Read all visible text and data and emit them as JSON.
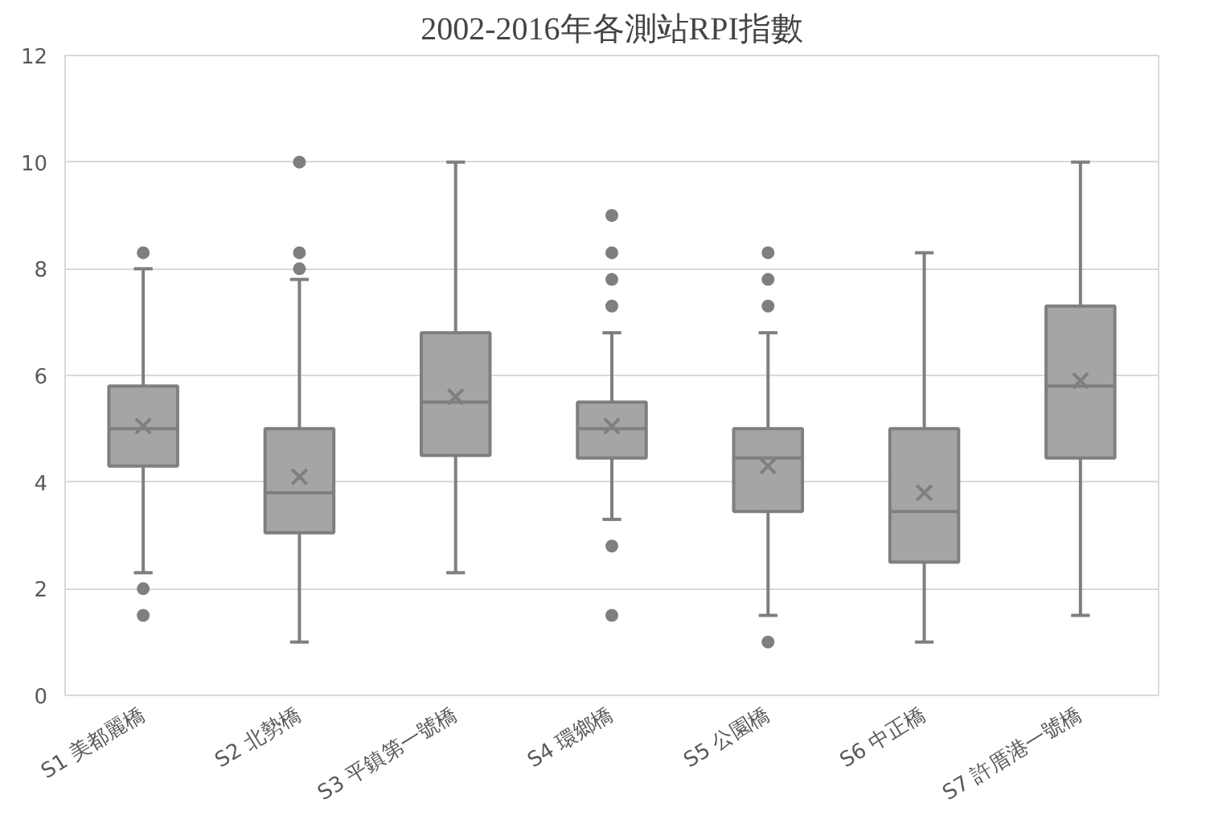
{
  "chart_data": {
    "type": "box",
    "title": "2002-2016年各測站RPI指數",
    "categories": [
      "S1 美都麗橋",
      "S2 北勢橋",
      "S3 平鎮第一號橋",
      "S4 環鄉橋",
      "S5 公園橋",
      "S6 中正橋",
      "S7 許厝港一號橋"
    ],
    "ylim": [
      0,
      12
    ],
    "yticks": [
      0,
      2,
      4,
      6,
      8,
      10,
      12
    ],
    "grid": "y",
    "series": [
      {
        "color": "#a5a5a5",
        "boxes": [
          {
            "low": 2.3,
            "q1": 4.3,
            "median": 5.0,
            "q3": 5.8,
            "high": 8.0,
            "mean": 5.05,
            "outliers": [
              8.3,
              2.0,
              1.5
            ]
          },
          {
            "low": 1.0,
            "q1": 3.05,
            "median": 3.8,
            "q3": 5.0,
            "high": 7.8,
            "mean": 4.1,
            "outliers": [
              10.0,
              8.3,
              8.0
            ]
          },
          {
            "low": 2.3,
            "q1": 4.5,
            "median": 5.5,
            "q3": 6.8,
            "high": 10.0,
            "mean": 5.6
          },
          {
            "low": 3.3,
            "q1": 4.45,
            "median": 5.0,
            "q3": 5.5,
            "high": 6.8,
            "mean": 5.05,
            "outliers": [
              9.0,
              8.3,
              7.8,
              7.3,
              2.8,
              1.5
            ]
          },
          {
            "low": 1.5,
            "q1": 3.45,
            "median": 4.45,
            "q3": 5.0,
            "high": 6.8,
            "mean": 4.3,
            "outliers": [
              8.3,
              7.8,
              7.3,
              1.0
            ]
          },
          {
            "low": 1.0,
            "q1": 2.5,
            "median": 3.45,
            "q3": 5.0,
            "high": 8.3,
            "mean": 3.8
          },
          {
            "low": 1.5,
            "q1": 4.45,
            "median": 5.8,
            "q3": 7.3,
            "high": 10.0,
            "mean": 5.9
          }
        ]
      }
    ]
  }
}
